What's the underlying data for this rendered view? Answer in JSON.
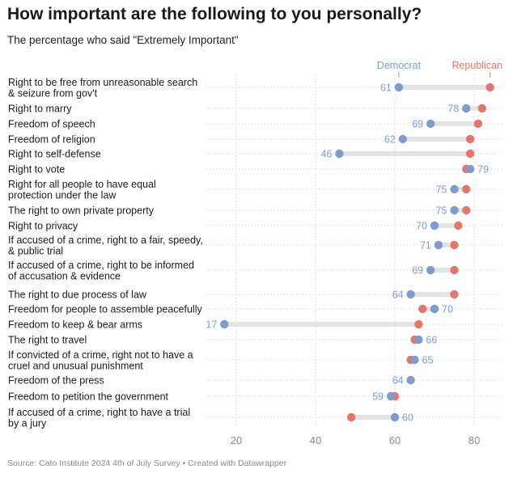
{
  "title": "How important are the following to you personally?",
  "subtitle": "The percentage who said \"Extremely Important\"",
  "source": "Source: Cato Institute 2024 4th of July Survey • Created with Datawrapper",
  "colors": {
    "democrat": "#7f9ccf",
    "republican": "#e5766b",
    "bar": "#e3e3e3",
    "grid": "#d4d4d4",
    "text": "#1a1a1a",
    "tick": "#8a8a8a"
  },
  "chart_data": {
    "type": "dot-range",
    "xlim": [
      0,
      85
    ],
    "xticks": [
      20,
      40,
      60,
      80
    ],
    "grid": true,
    "series_names": {
      "dem": "Democrat",
      "rep": "Republican"
    },
    "rows": [
      {
        "label": [
          "Right to be free from unreasonable search",
          "& seizure from gov't"
        ],
        "dem": 61,
        "rep": 84,
        "label_side": "dem",
        "label_value": "61"
      },
      {
        "label": [
          "Right to marry"
        ],
        "dem": 78,
        "rep": 82,
        "label_side": "dem",
        "label_value": "78"
      },
      {
        "label": [
          "Freedom of speech"
        ],
        "dem": 69,
        "rep": 81,
        "label_side": "dem",
        "label_value": "69"
      },
      {
        "label": [
          "Freedom of religion"
        ],
        "dem": 62,
        "rep": 79,
        "label_side": "dem",
        "label_value": "62"
      },
      {
        "label": [
          "Right to self-defense"
        ],
        "dem": 46,
        "rep": 79,
        "label_side": "dem",
        "label_value": "46"
      },
      {
        "label": [
          "Right to vote"
        ],
        "dem": 79,
        "rep": 78,
        "label_side": "dem",
        "label_value": "79"
      },
      {
        "label": [
          "Right for all people to have equal",
          "protection under the law"
        ],
        "dem": 75,
        "rep": 78,
        "label_side": "dem",
        "label_value": "75"
      },
      {
        "label": [
          "The right to own private property"
        ],
        "dem": 75,
        "rep": 78,
        "label_side": "dem",
        "label_value": "75"
      },
      {
        "label": [
          "Right to privacy"
        ],
        "dem": 70,
        "rep": 76,
        "label_side": "dem",
        "label_value": "70"
      },
      {
        "label": [
          "If accused of a crime, right to a fair, speedy,",
          "& public trial"
        ],
        "dem": 71,
        "rep": 75,
        "label_side": "dem",
        "label_value": "71"
      },
      {
        "label": [
          "If accused of a crime, right to be informed",
          "of accusation & evidence"
        ],
        "dem": 69,
        "rep": 75,
        "label_side": "dem",
        "label_value": "69"
      },
      {
        "label": [
          "The right to due process of law"
        ],
        "dem": 64,
        "rep": 75,
        "label_side": "dem",
        "label_value": "64"
      },
      {
        "label": [
          "Freedom for people to assemble peacefully"
        ],
        "dem": 70,
        "rep": 67,
        "label_side": "dem",
        "label_value": "70"
      },
      {
        "label": [
          "Freedom to keep & bear arms"
        ],
        "dem": 17,
        "rep": 66,
        "label_side": "dem",
        "label_value": "17"
      },
      {
        "label": [
          "The right to travel"
        ],
        "dem": 66,
        "rep": 65,
        "label_side": "dem",
        "label_value": "66"
      },
      {
        "label": [
          "If convicted of a crime, right not to have a",
          "cruel and unusual punishment"
        ],
        "dem": 65,
        "rep": 64,
        "label_side": "dem",
        "label_value": "65"
      },
      {
        "label": [
          "Freedom of the press"
        ],
        "dem": 64,
        "rep": 64,
        "label_side": "dem",
        "label_value": "64"
      },
      {
        "label": [
          "Freedom to petition the government"
        ],
        "dem": 59,
        "rep": 60,
        "label_side": "dem",
        "label_value": "59"
      },
      {
        "label": [
          "If accused of a crime, right to have a trial",
          "by a jury"
        ],
        "dem": 60,
        "rep": 49,
        "label_side": "dem",
        "label_value": "60"
      }
    ]
  }
}
